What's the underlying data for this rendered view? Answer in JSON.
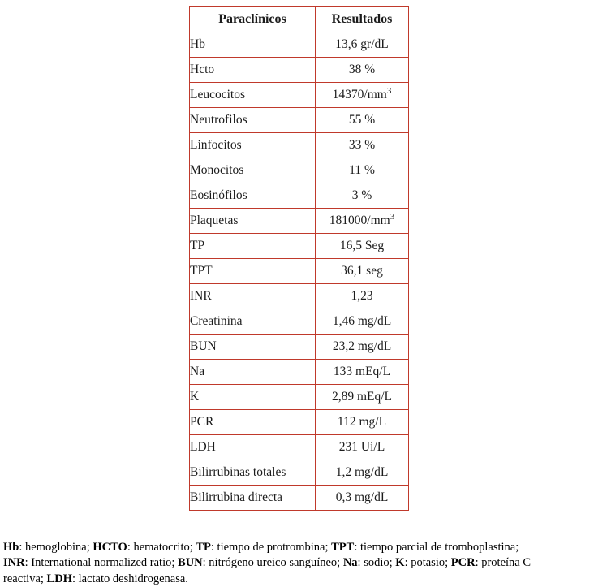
{
  "colors": {
    "table_border": "#c0392b",
    "text": "#1c1c1c"
  },
  "table": {
    "headers": [
      "Paraclínicos",
      "Resultados"
    ],
    "rows": [
      {
        "label": "Hb",
        "value": "13,6 gr/dL"
      },
      {
        "label": "Hcto",
        "value": "38 %"
      },
      {
        "label": "Leucocitos",
        "value": "14370/mm³"
      },
      {
        "label": "Neutrofilos",
        "value": "55 %"
      },
      {
        "label": "Linfocitos",
        "value": "33 %"
      },
      {
        "label": "Monocitos",
        "value": "11 %"
      },
      {
        "label": "Eosinófilos",
        "value": "3 %"
      },
      {
        "label": "Plaquetas",
        "value": "181000/mm³"
      },
      {
        "label": "TP",
        "value": "16,5 Seg"
      },
      {
        "label": "TPT",
        "value": "36,1 seg"
      },
      {
        "label": "INR",
        "value": "1,23"
      },
      {
        "label": "Creatinina",
        "value": "1,46 mg/dL"
      },
      {
        "label": "BUN",
        "value": "23,2 mg/dL"
      },
      {
        "label": "Na",
        "value": "133 mEq/L"
      },
      {
        "label": "K",
        "value": "2,89 mEq/L"
      },
      {
        "label": "PCR",
        "value": "112 mg/L"
      },
      {
        "label": "LDH",
        "value": "231 Ui/L"
      },
      {
        "label": "Bilirrubinas totales",
        "value": "1,2 mg/dL"
      },
      {
        "label": "Bilirrubina directa",
        "value": "0,3 mg/dL"
      }
    ]
  },
  "footnote": {
    "lines": [
      [
        {
          "text": "Hb",
          "bold": true
        },
        {
          "text": ": hemoglobina; "
        },
        {
          "text": "HCTO",
          "bold": true
        },
        {
          "text": ": hematocrito; "
        },
        {
          "text": "TP",
          "bold": true
        },
        {
          "text": ": tiempo de protrombina; "
        },
        {
          "text": "TPT",
          "bold": true
        },
        {
          "text": ": tiempo parcial de tromboplastina;"
        }
      ],
      [
        {
          "text": "INR",
          "bold": true
        },
        {
          "text": ": International normalized ratio; "
        },
        {
          "text": "BUN",
          "bold": true
        },
        {
          "text": ": nitrógeno ureico sanguíneo; "
        },
        {
          "text": "Na",
          "bold": true
        },
        {
          "text": ": sodio; "
        },
        {
          "text": "K",
          "bold": true
        },
        {
          "text": ": potasio; "
        },
        {
          "text": "PCR",
          "bold": true
        },
        {
          "text": ": proteína C"
        }
      ],
      [
        {
          "text": "reactiva; "
        },
        {
          "text": "LDH",
          "bold": true
        },
        {
          "text": ": lactato deshidrogenasa."
        }
      ]
    ]
  }
}
